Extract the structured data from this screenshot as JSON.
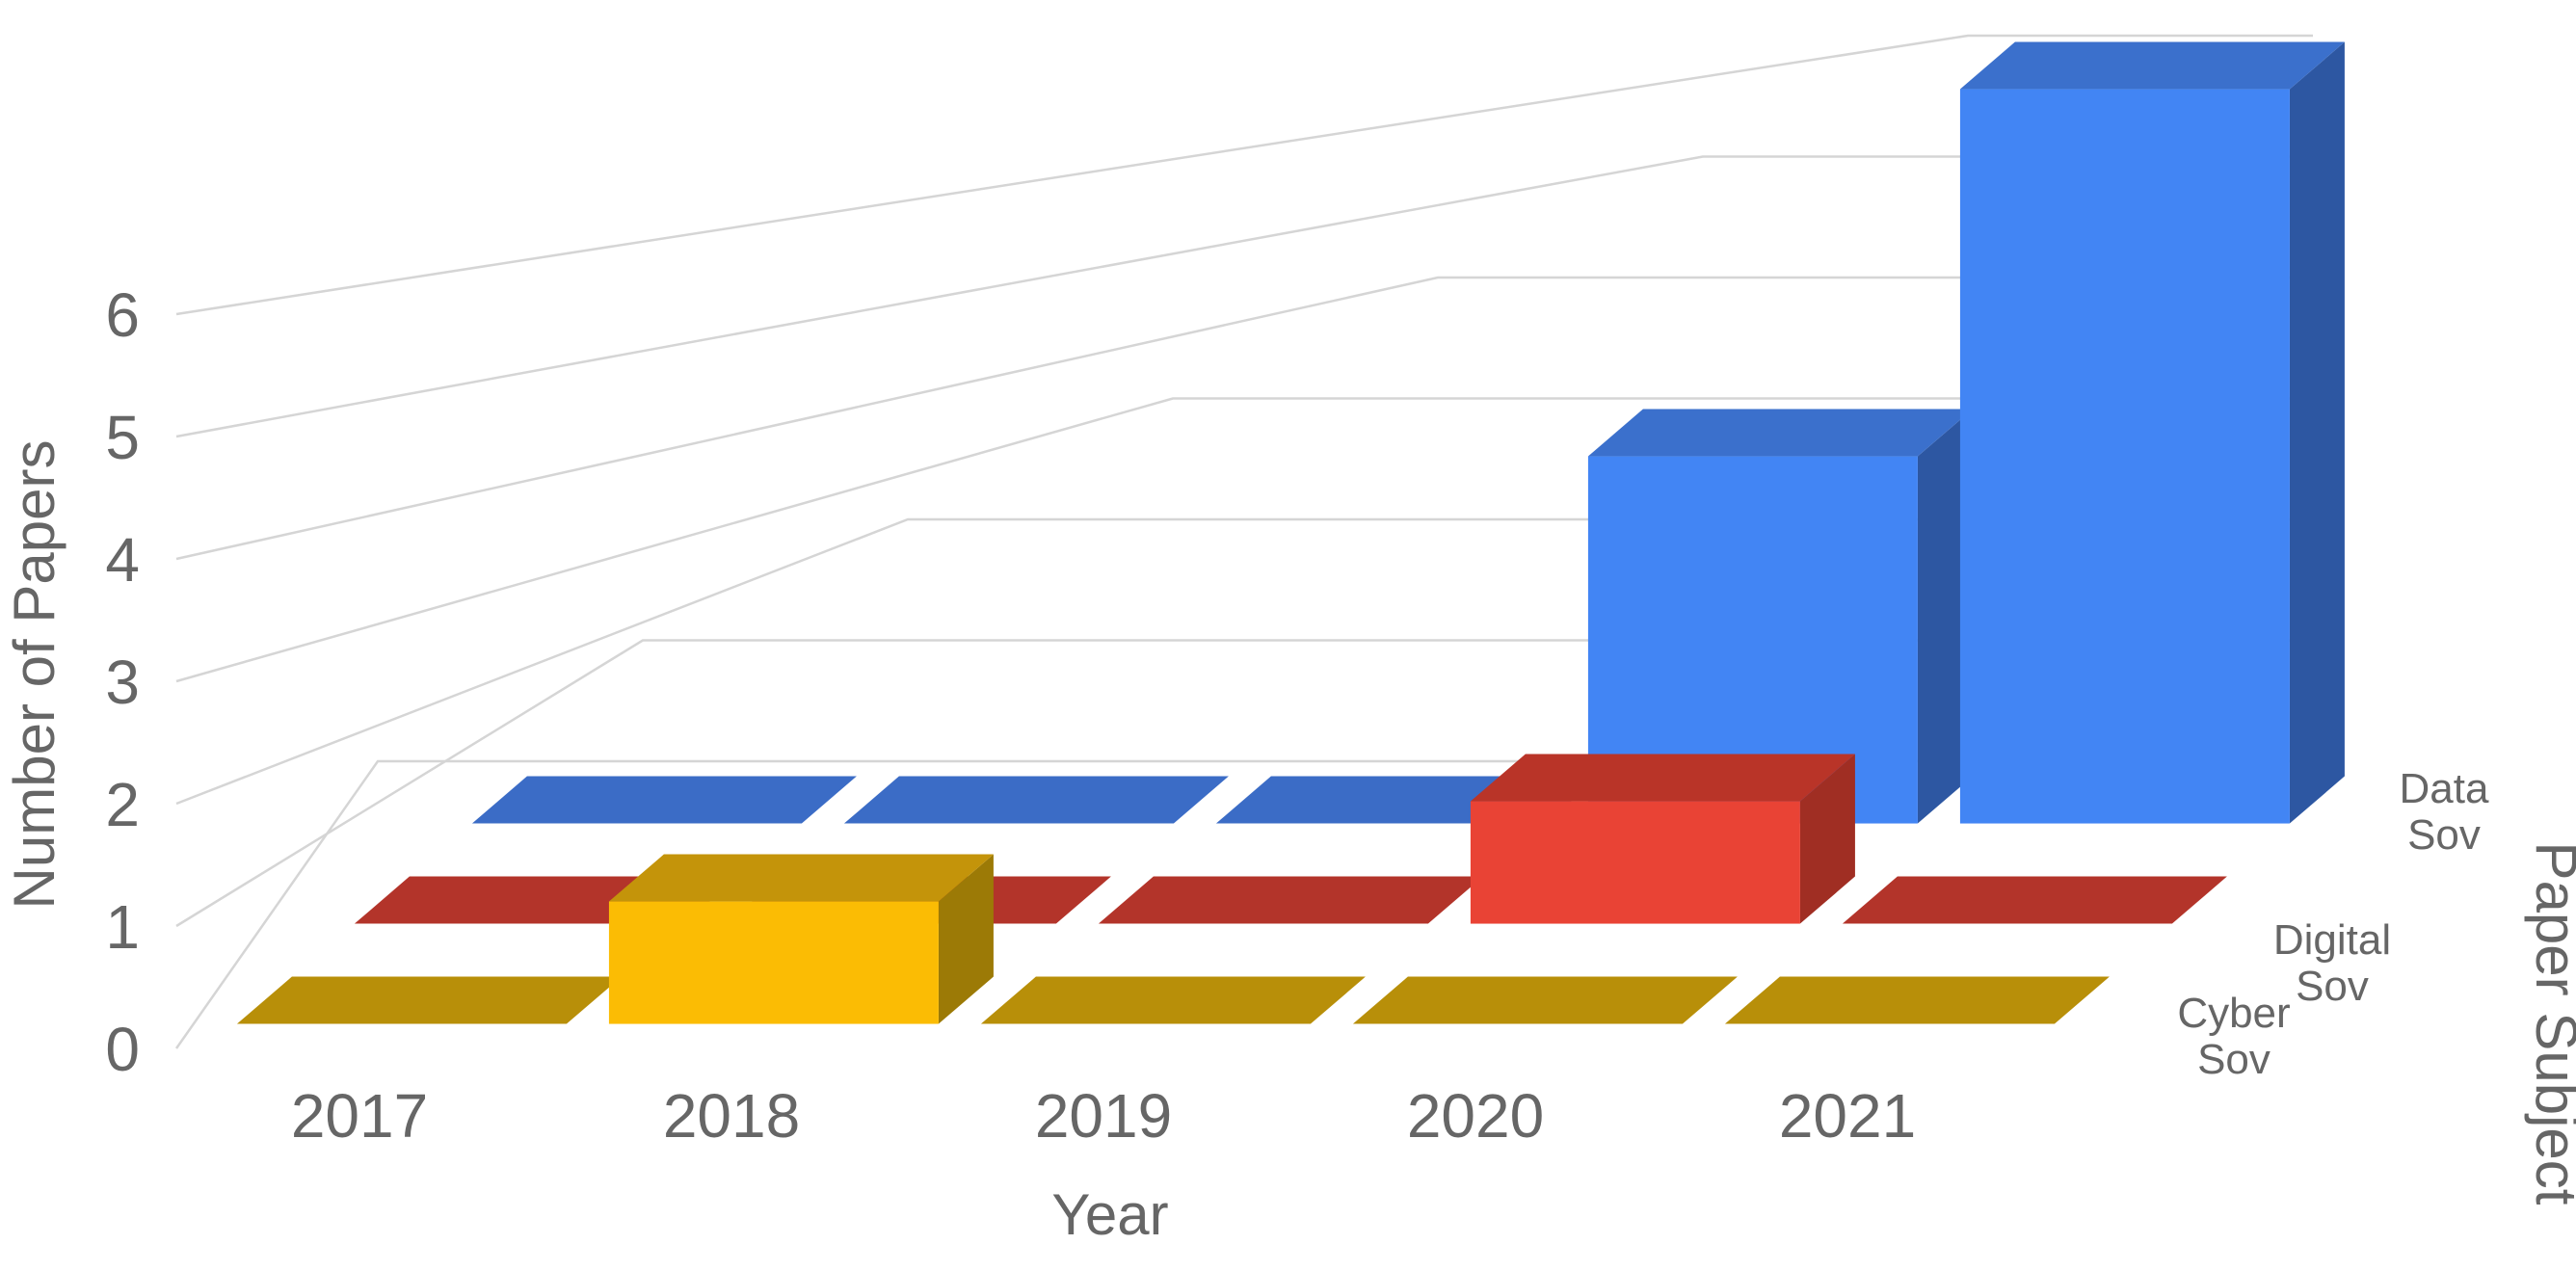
{
  "chart_data": {
    "type": "bar",
    "variant": "3d-column",
    "title": "",
    "xlabel": "Year",
    "ylabel": "Number of Papers",
    "zlabel": "Paper Subject",
    "categories": [
      "2017",
      "2018",
      "2019",
      "2020",
      "2021"
    ],
    "y_ticks": [
      "0",
      "1",
      "2",
      "3",
      "4",
      "5",
      "6"
    ],
    "ylim": [
      0,
      6
    ],
    "grid": true,
    "legend_position": "right-depth-axis",
    "series": [
      {
        "name": "Cyber Sov",
        "label_lines": [
          "Cyber",
          "Sov"
        ],
        "values": [
          0,
          1,
          0,
          0,
          0
        ],
        "colors": {
          "front": "#FBBC04",
          "top": "#C4940A",
          "side": "#9C7A06",
          "tile": "#B88F09"
        }
      },
      {
        "name": "Digital Sov",
        "label_lines": [
          "Digital",
          "Sov"
        ],
        "values": [
          0,
          0,
          0,
          1,
          0
        ],
        "colors": {
          "front": "#E94335",
          "top": "#B93428",
          "side": "#A02E23",
          "tile": "#B3342A"
        }
      },
      {
        "name": "Data Sov",
        "label_lines": [
          "Data",
          "Sov"
        ],
        "values": [
          0,
          0,
          0,
          3,
          6
        ],
        "colors": {
          "front": "#4285F4",
          "top": "#3B70CC",
          "side": "#2D57A2",
          "tile": "#3B6CC6"
        }
      }
    ],
    "text_color": "#666666",
    "gridline_color": "#d5d5d5",
    "background_color": "#ffffff"
  }
}
